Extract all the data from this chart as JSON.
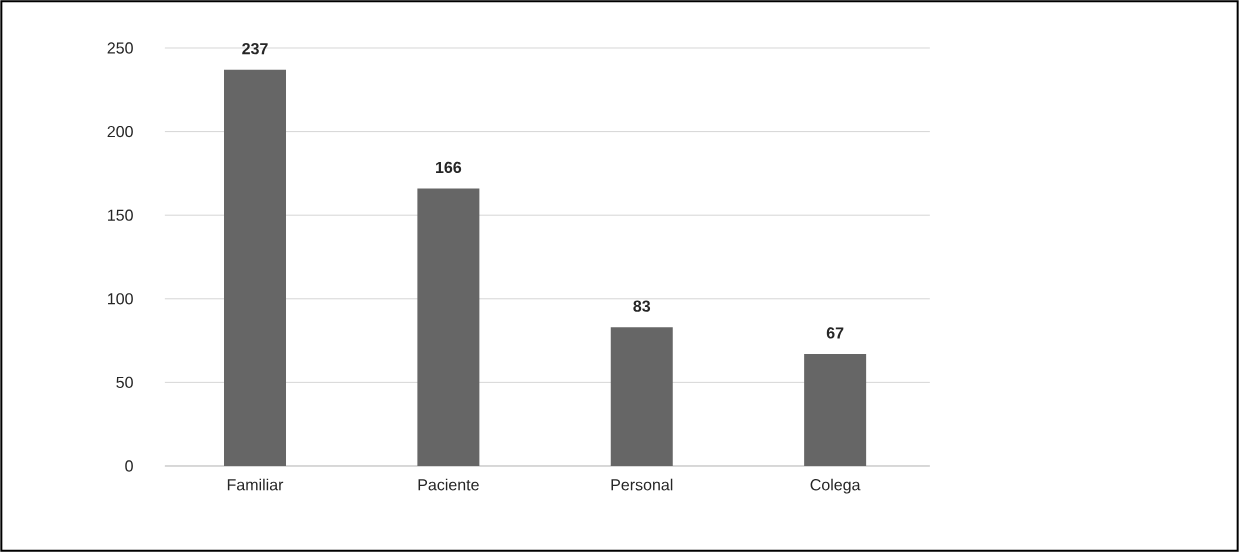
{
  "chart_data": {
    "type": "bar",
    "categories": [
      "Familiar",
      "Paciente",
      "Personal",
      "Colega"
    ],
    "values": [
      237,
      166,
      83,
      67
    ],
    "color": "#666666",
    "ylim": [
      0,
      250
    ],
    "yticks": [
      0,
      50,
      100,
      150,
      200,
      250
    ],
    "grid": "y",
    "data_labels": true
  }
}
